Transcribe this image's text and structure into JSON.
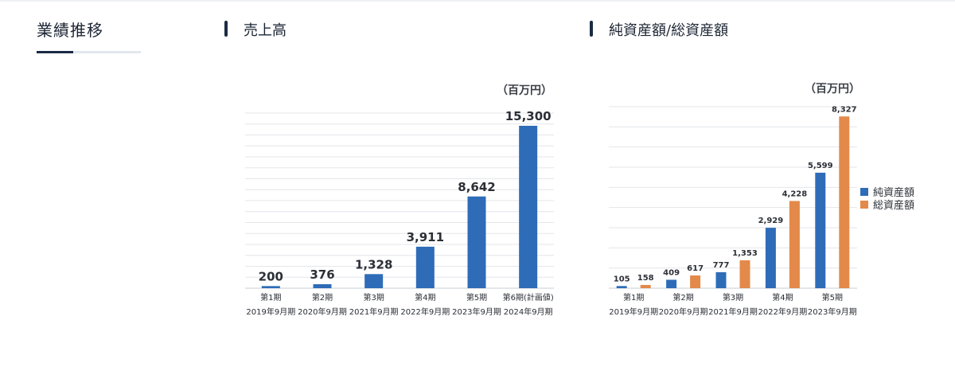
{
  "section": {
    "title": "業績推移"
  },
  "chart_data": [
    {
      "type": "bar",
      "title": "売上高",
      "unit": "（百万円）",
      "categories": [
        "第1期",
        "第2期",
        "第3期",
        "第4期",
        "第5期",
        "第6期(計画値)"
      ],
      "subcategories": [
        "2019年9月期",
        "2020年9月期",
        "2021年9月期",
        "2022年9月期",
        "2023年9月期",
        "2024年9月期"
      ],
      "series": [
        {
          "values": [
            200,
            376,
            1328,
            3911,
            8642,
            15300
          ],
          "labels": [
            "200",
            "376",
            "1,328",
            "3,911",
            "8,642",
            "15,300"
          ],
          "color": "#2e6cb8"
        }
      ],
      "ylim": [
        0,
        16500
      ],
      "grid": true
    },
    {
      "type": "bar",
      "title": "純資産額/総資産額",
      "unit": "（百万円）",
      "categories": [
        "第1期",
        "第2期",
        "第3期",
        "第4期",
        "第5期"
      ],
      "subcategories": [
        "2019年9月期",
        "2020年9月期",
        "2021年9月期",
        "2022年9月期",
        "2023年9月期"
      ],
      "series": [
        {
          "name": "純資産額",
          "values": [
            105,
            409,
            777,
            2929,
            5599
          ],
          "labels": [
            "105",
            "409",
            "777",
            "2,929",
            "5,599"
          ],
          "color": "#2e6cb8"
        },
        {
          "name": "総資産額",
          "values": [
            158,
            617,
            1353,
            4228,
            8327
          ],
          "labels": [
            "158",
            "617",
            "1,353",
            "4,228",
            "8,327"
          ],
          "color": "#e3894a"
        }
      ],
      "ylim": [
        0,
        8800
      ],
      "grid": true,
      "legend": "right"
    }
  ]
}
